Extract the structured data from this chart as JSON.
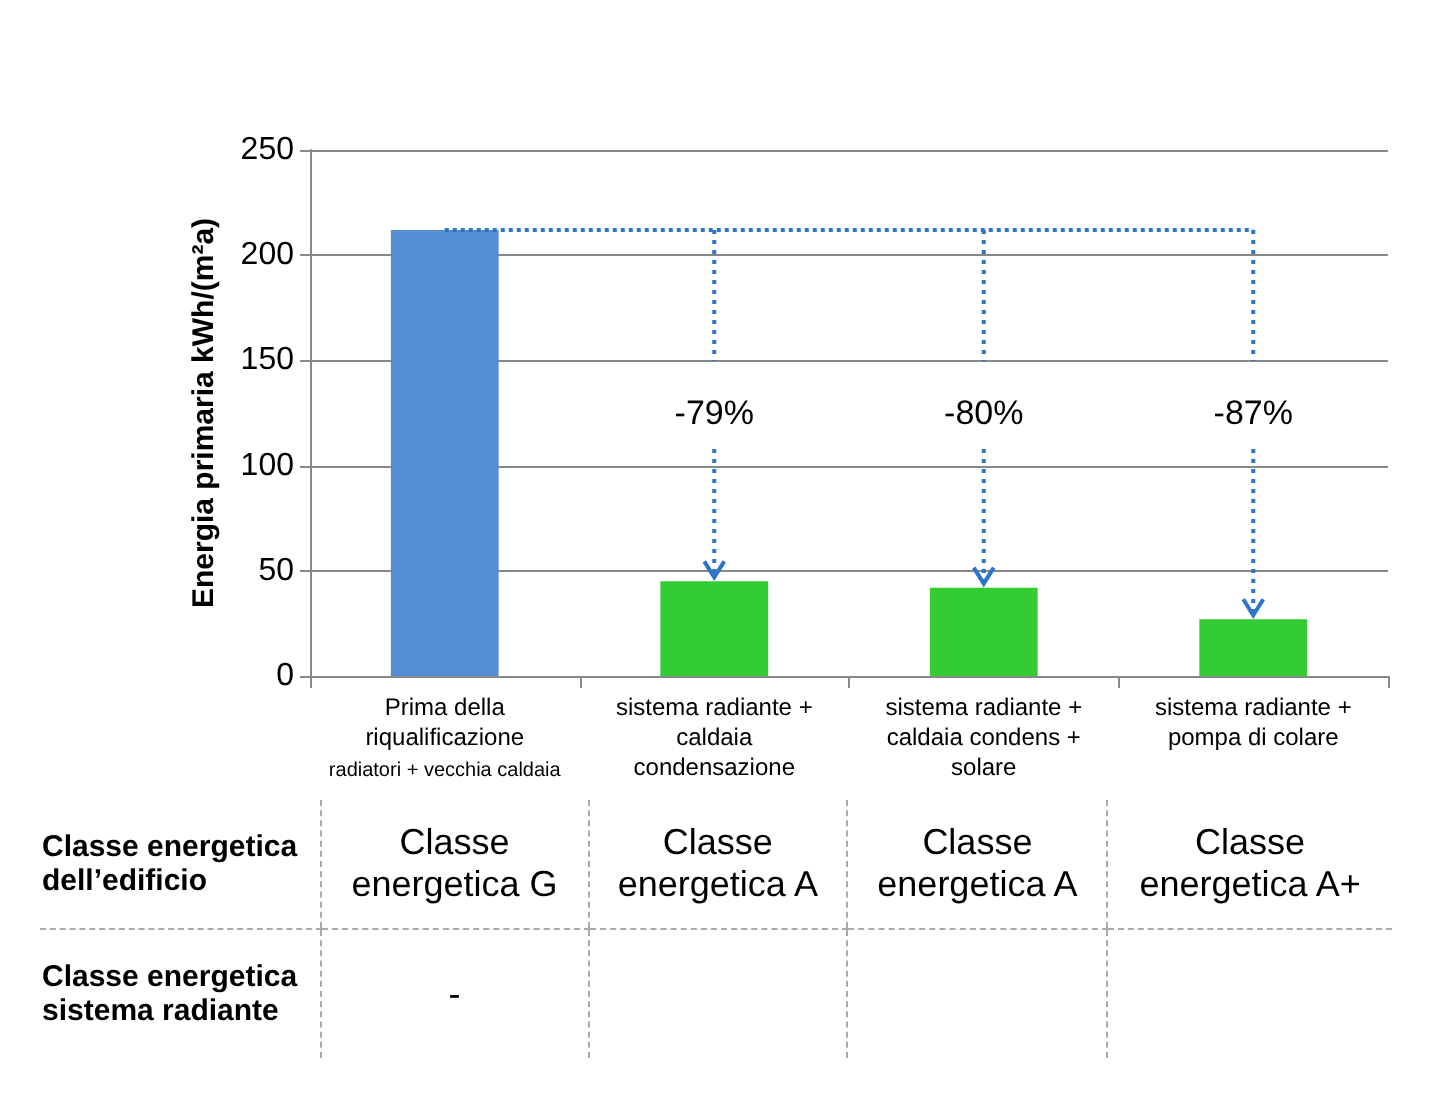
{
  "chart_data": {
    "type": "bar",
    "ylabel": "Energia primaria kWh/(m²a)",
    "categories": [
      "Prima della\nriqualificazione\nradiatori + vecchia caldaia",
      "sistema radiante +\ncaldaia\ncondensazione",
      "sistema radiante +\ncaldaia condens +\nsolare",
      "sistema radiante +\npompa di colare"
    ],
    "values": [
      212,
      45,
      42,
      27
    ],
    "colors": [
      "#558ed5",
      "#33cc33",
      "#33cc33",
      "#33cc33"
    ],
    "ref_lines": [
      {
        "axis": "y",
        "value": 212,
        "color": "#2e75c8",
        "line_style": "dotted"
      }
    ],
    "ylim": [
      0,
      250
    ],
    "yticks": [
      0,
      50,
      100,
      150,
      200,
      250
    ],
    "grid": "y",
    "annotations": [
      {
        "text": "-79%",
        "x": "sistema radiante +\ncaldaia\ncondensazione",
        "y": 45
      },
      {
        "text": "-80%",
        "x": "sistema radiante +\ncaldaia condens +\nsolare",
        "y": 42
      },
      {
        "text": "-87%",
        "x": "sistema radiante +\npompa di colare",
        "y": 27
      },
      "Classe energetica\ndell’edificio",
      "Classe\nenergetica G",
      "Classe\nenergetica A",
      "Classe\nenergetica A",
      "Classe\nenergetica A+",
      "Classe energetica\nsistema radiante",
      "-"
    ]
  }
}
